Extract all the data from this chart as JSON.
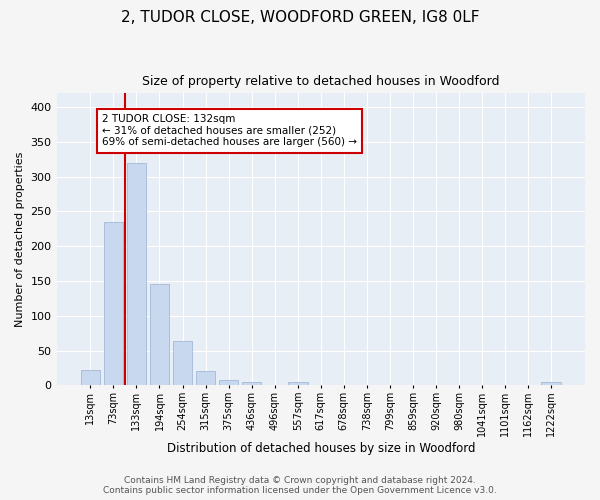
{
  "title": "2, TUDOR CLOSE, WOODFORD GREEN, IG8 0LF",
  "subtitle": "Size of property relative to detached houses in Woodford",
  "xlabel": "Distribution of detached houses by size in Woodford",
  "ylabel": "Number of detached properties",
  "bar_color": "#c8d8ee",
  "bar_edge_color": "#9ab0d0",
  "categories": [
    "13sqm",
    "73sqm",
    "133sqm",
    "194sqm",
    "254sqm",
    "315sqm",
    "375sqm",
    "436sqm",
    "496sqm",
    "557sqm",
    "617sqm",
    "678sqm",
    "738sqm",
    "799sqm",
    "859sqm",
    "920sqm",
    "980sqm",
    "1041sqm",
    "1101sqm",
    "1162sqm",
    "1222sqm"
  ],
  "values": [
    22,
    235,
    320,
    145,
    64,
    21,
    8,
    5,
    0,
    4,
    0,
    0,
    0,
    0,
    0,
    0,
    0,
    0,
    0,
    0,
    4
  ],
  "vline_color": "#cc0000",
  "annotation_text": "2 TUDOR CLOSE: 132sqm\n← 31% of detached houses are smaller (252)\n69% of semi-detached houses are larger (560) →",
  "annotation_box_color": "white",
  "annotation_box_edge_color": "#cc0000",
  "ylim": [
    0,
    420
  ],
  "yticks": [
    0,
    50,
    100,
    150,
    200,
    250,
    300,
    350,
    400
  ],
  "fig_bg_color": "#f5f5f5",
  "plot_bg_color": "#e8eef5",
  "grid_color": "#ffffff",
  "footer_line1": "Contains HM Land Registry data © Crown copyright and database right 2024.",
  "footer_line2": "Contains public sector information licensed under the Open Government Licence v3.0.",
  "title_fontsize": 11,
  "subtitle_fontsize": 9,
  "footer_fontsize": 6.5,
  "xlabel_fontsize": 8.5,
  "ylabel_fontsize": 8
}
